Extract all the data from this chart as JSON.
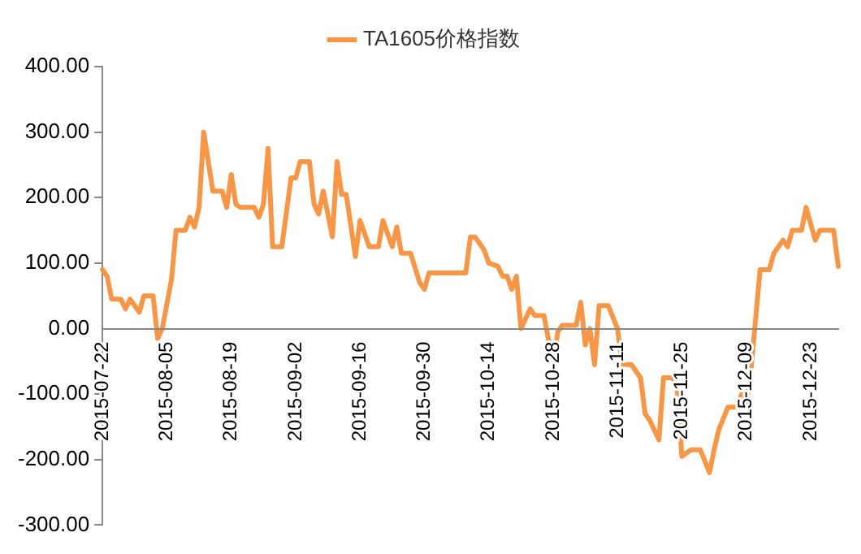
{
  "chart_data": {
    "type": "line",
    "legend": "top",
    "grid": false,
    "marker": "none",
    "line_style": "solid",
    "x": [
      "2015-07-22",
      "2015-07-23",
      "2015-07-24",
      "2015-07-26",
      "2015-07-27",
      "2015-07-28",
      "2015-07-30",
      "2015-07-31",
      "2015-08-02",
      "2015-08-03",
      "2015-08-04",
      "2015-08-06",
      "2015-08-07",
      "2015-08-09",
      "2015-08-10",
      "2015-08-11",
      "2015-08-12",
      "2015-08-13",
      "2015-08-15",
      "2015-08-17",
      "2015-08-18",
      "2015-08-19",
      "2015-08-20",
      "2015-08-21",
      "2015-08-24",
      "2015-08-25",
      "2015-08-26",
      "2015-08-27",
      "2015-08-28",
      "2015-08-30",
      "2015-09-01",
      "2015-09-02",
      "2015-09-03",
      "2015-09-05",
      "2015-09-06",
      "2015-09-07",
      "2015-09-08",
      "2015-09-10",
      "2015-09-11",
      "2015-09-12",
      "2015-09-13",
      "2015-09-15",
      "2015-09-16",
      "2015-09-18",
      "2015-09-20",
      "2015-09-21",
      "2015-09-23",
      "2015-09-24",
      "2015-09-25",
      "2015-09-27",
      "2015-09-29",
      "2015-09-30",
      "2015-10-01",
      "2015-10-07",
      "2015-10-09",
      "2015-10-10",
      "2015-10-11",
      "2015-10-13",
      "2015-10-14",
      "2015-10-16",
      "2015-10-17",
      "2015-10-18",
      "2015-10-19",
      "2015-10-20",
      "2015-10-21",
      "2015-10-23",
      "2015-10-24",
      "2015-10-26",
      "2015-10-28",
      "2015-10-29",
      "2015-10-30",
      "2015-11-02",
      "2015-11-03",
      "2015-11-04",
      "2015-11-05",
      "2015-11-06",
      "2015-11-07",
      "2015-11-09",
      "2015-11-11",
      "2015-11-12",
      "2015-11-14",
      "2015-11-16",
      "2015-11-17",
      "2015-11-18",
      "2015-11-20",
      "2015-11-21",
      "2015-11-23",
      "2015-11-24",
      "2015-11-25",
      "2015-11-27",
      "2015-11-29",
      "2015-12-01",
      "2015-12-02",
      "2015-12-03",
      "2015-12-05",
      "2015-12-07",
      "2015-12-08",
      "2015-12-09",
      "2015-12-10",
      "2015-12-12",
      "2015-12-14",
      "2015-12-15",
      "2015-12-16",
      "2015-12-17",
      "2015-12-18",
      "2015-12-19",
      "2015-12-21",
      "2015-12-22",
      "2015-12-24",
      "2015-12-25",
      "2015-12-28",
      "2015-12-29"
    ],
    "series": [
      {
        "name": "TA1605价格指数",
        "color": "#f79646",
        "values": [
          90,
          80,
          45,
          45,
          30,
          45,
          25,
          50,
          50,
          -15,
          0,
          75,
          150,
          150,
          170,
          155,
          185,
          300,
          210,
          210,
          185,
          235,
          190,
          185,
          185,
          170,
          190,
          275,
          125,
          125,
          230,
          230,
          255,
          255,
          190,
          175,
          210,
          140,
          255,
          205,
          205,
          110,
          165,
          125,
          125,
          165,
          125,
          155,
          115,
          115,
          70,
          60,
          85,
          85,
          85,
          140,
          140,
          120,
          100,
          95,
          80,
          80,
          60,
          80,
          0,
          30,
          20,
          20,
          -55,
          -5,
          5,
          5,
          40,
          -25,
          0,
          -55,
          35,
          35,
          0,
          -55,
          -55,
          -75,
          -130,
          -140,
          -170,
          -75,
          -75,
          -95,
          -195,
          -185,
          -185,
          -220,
          -185,
          -155,
          -120,
          -120,
          -100,
          -115,
          -65,
          90,
          90,
          115,
          125,
          135,
          125,
          150,
          150,
          185,
          135,
          150,
          150,
          95
        ]
      }
    ],
    "xlim": [
      "2015-07-22",
      "2015-12-29"
    ],
    "xticks": [
      "2015-07-22",
      "2015-08-05",
      "2015-08-19",
      "2015-09-02",
      "2015-09-16",
      "2015-09-30",
      "2015-10-14",
      "2015-10-28",
      "2015-11-11",
      "2015-11-25",
      "2015-12-09",
      "2015-12-23"
    ],
    "ylim": [
      -300,
      400
    ],
    "yticks": [
      {
        "value": -300,
        "label": "-300.00"
      },
      {
        "value": -200,
        "label": "-200.00"
      },
      {
        "value": -100,
        "label": "-100.00"
      },
      {
        "value": 0,
        "label": "0.00"
      },
      {
        "value": 100,
        "label": "100.00"
      },
      {
        "value": 200,
        "label": "200.00"
      },
      {
        "value": 300,
        "label": "300.00"
      },
      {
        "value": 400,
        "label": "400.00"
      }
    ]
  }
}
